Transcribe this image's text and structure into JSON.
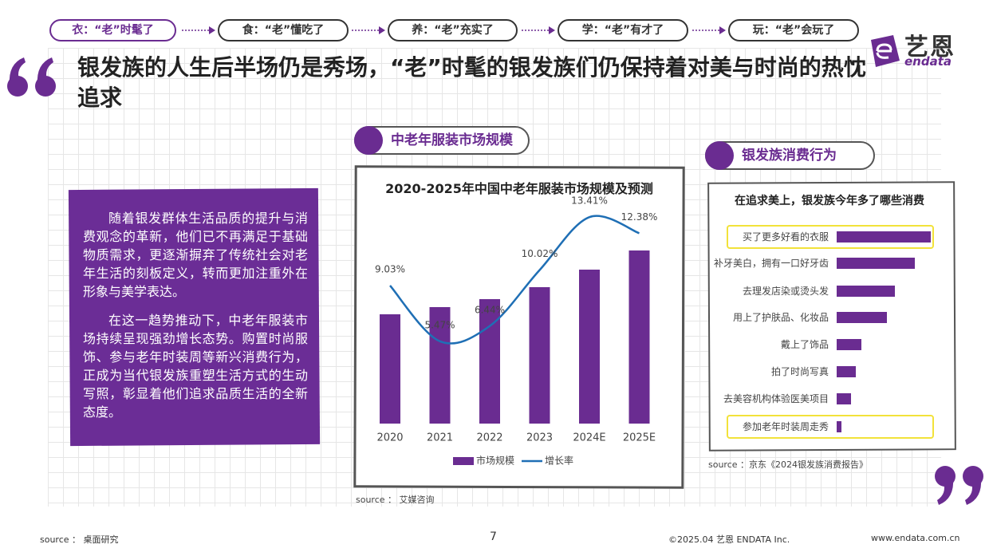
{
  "nav": [
    "衣：“老”时髦了",
    "食：“老”懂吃了",
    "养：“老”充实了",
    "学：“老”有才了",
    "玩：“老”会玩了"
  ],
  "logo": {
    "name": "艺恩",
    "en": "endata"
  },
  "title": "银发族的人生后半场仍是秀场，“老”时髦的银发族们仍保持着对美与时尚的热忱追求",
  "intro": {
    "paragraphs": [
      "随着银发群体生活品质的提升与消费观念的革新，他们已不再满足于基础物质需求，更逐渐摒弃了传统社会对老年生活的刻板定义，转而更加注重外在形象与美学表达。",
      "在这一趋势推动下，中老年服装市场持续呈现强劲增长态势。购置时尚服饰、参与老年时装周等新兴消费行为，正成为当代银发族重塑生活方式的生动写照，彰显着他们追求品质生活的全新态度。"
    ]
  },
  "sections": [
    "中老年服装市场规模",
    "银发族消费行为"
  ],
  "chart_data": [
    {
      "type": "bar",
      "title": "2020-2025年中国中老年服装市场规模及预测",
      "categories": [
        "2020",
        "2021",
        "2022",
        "2023",
        "2024E",
        "2025E"
      ],
      "series": [
        {
          "name": "市场规模",
          "color": "#6a2c91",
          "values": [
            137,
            146,
            156,
            171,
            193,
            217
          ]
        },
        {
          "name": "增长率",
          "type": "line",
          "axis": "y2",
          "color": "#1f6fb5",
          "values": [
            9.03,
            5.47,
            6.44,
            10.02,
            13.41,
            12.38
          ],
          "value_labels": [
            "9.03%",
            "5.47%",
            "6.44%",
            "10.02%",
            "13.41%",
            "12.38%"
          ]
        }
      ],
      "source": "source ： 艾媒咨询"
    },
    {
      "type": "hbar",
      "title": "在追求美上，银发族今年多了哪些消费",
      "categories": [
        "买了更多好看的衣服",
        "补牙美白，拥有一口好牙齿",
        "去理发店染或烫头发",
        "用上了护肤品、化妆品",
        "戴上了饰品",
        "拍了时尚写真",
        "去美容机构体验医美项目",
        "参加老年时装周走秀"
      ],
      "values": [
        118,
        98,
        73,
        63,
        31,
        24,
        18,
        6
      ],
      "color": "#6a2c91",
      "source": "source ：京东《2024银发族消费报告》"
    }
  ],
  "footer": {
    "source": "source ： 桌面研究",
    "page": "7",
    "copyright": "©2025.04 艺恩 ENDATA Inc.",
    "url": "www.endata.com.cn"
  }
}
